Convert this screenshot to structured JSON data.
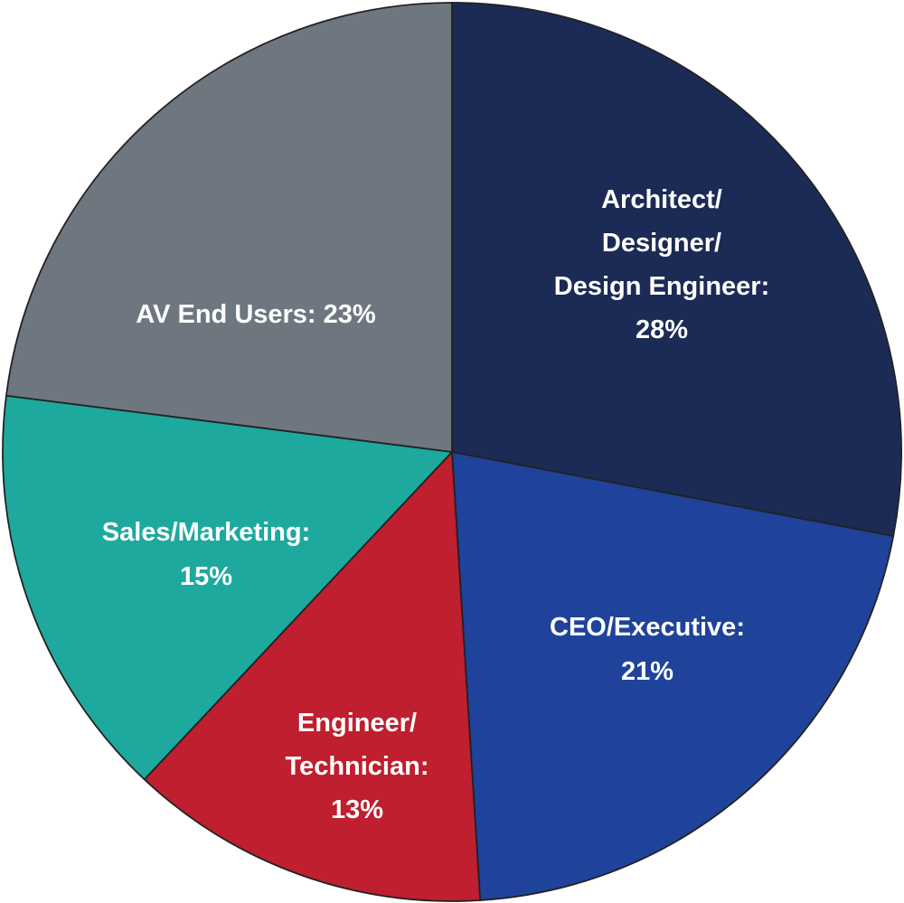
{
  "chart_data": {
    "type": "pie",
    "start": "top",
    "direction": "clockwise",
    "slices": [
      {
        "label_lines": [
          "Architect/",
          "Designer/",
          "Design Engineer:",
          "28%"
        ],
        "category": "Architect/Designer/Design Engineer",
        "value": 28,
        "color": "#1c2b55"
      },
      {
        "label_lines": [
          "CEO/Executive:",
          "21%"
        ],
        "category": "CEO/Executive",
        "value": 21,
        "color": "#1f429a"
      },
      {
        "label_lines": [
          "Engineer/",
          "Technician:",
          "13%"
        ],
        "category": "Engineer/Technician",
        "value": 13,
        "color": "#bf1f2e"
      },
      {
        "label_lines": [
          "Sales/Marketing:",
          "15%"
        ],
        "category": "Sales/Marketing",
        "value": 15,
        "color": "#1da99e"
      },
      {
        "label_lines": [
          "AV End Users: 23%"
        ],
        "category": "AV End Users",
        "value": 23,
        "color": "#6e7780"
      }
    ],
    "border_color": "#222222"
  }
}
